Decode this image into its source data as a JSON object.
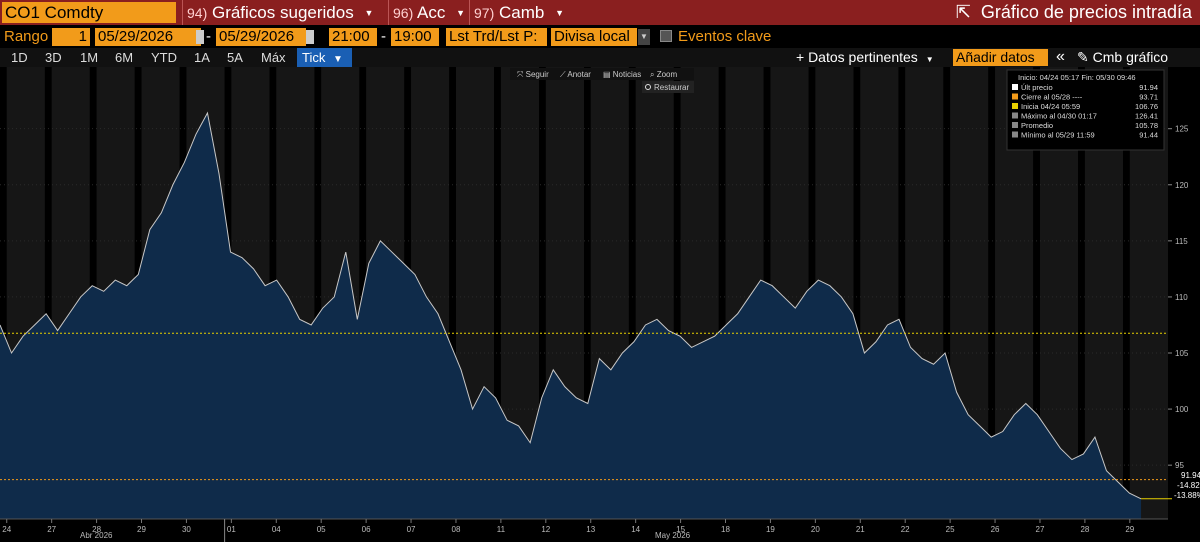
{
  "titlebar": {
    "ticker": "CO1 Comdty",
    "menus": [
      {
        "num": "94)",
        "label": "Gráficos sugeridos"
      },
      {
        "num": "96)",
        "label": "Acc"
      },
      {
        "num": "97)",
        "label": "Camb"
      }
    ],
    "intraday": "Gráfico de precios intradía"
  },
  "rangerow": {
    "label": "Rango",
    "count": "1",
    "start_date": "05/29/2026",
    "dash": "-",
    "end_date": "05/29/2026",
    "start_time": "21:00",
    "end_time": "19:00",
    "field1": "Lst Trd/Lst P:",
    "currency": "Divisa local",
    "events": "Eventos clave"
  },
  "periodrow": {
    "periods": [
      "1D",
      "3D",
      "1M",
      "6M",
      "YTD",
      "1A",
      "5A",
      "Máx"
    ],
    "tick": "Tick",
    "relevant": "+ Datos pertinentes",
    "add_data": "Añadir datos",
    "collapse": "«",
    "edit_chart": "Cmb gráfico"
  },
  "toolbar": {
    "follow": "Seguir",
    "annotate": "Anotar",
    "news": "Noticias",
    "zoom": "Zoom",
    "restore": "Restaurar"
  },
  "legend": {
    "header": "Inicio: 04/24 05:17 Fin: 05/30 09:46",
    "rows": [
      {
        "label": "Últ precio",
        "value": "91.94",
        "color": "#ffffff"
      },
      {
        "label": "Cierre al 05/28 ----",
        "value": "93.71",
        "color": "#f29b1a"
      },
      {
        "label": "Inicia 04/24 05:59",
        "value": "106.76",
        "color": "#e8d000"
      },
      {
        "label": "Máximo al 04/30 01:17",
        "value": "126.41",
        "color": "#888888"
      },
      {
        "label": "Promedio",
        "value": "105.78",
        "color": "#888888"
      },
      {
        "label": "Mínimo al 05/29 11:59",
        "value": "91.44",
        "color": "#888888"
      }
    ]
  },
  "price_tags": {
    "last": "91.94",
    "chg1": "-14.82",
    "chg2": "-13.88%"
  },
  "month_labels": {
    "apr": "Abr 2026",
    "may": "May 2026"
  },
  "chart_data": {
    "type": "area",
    "y_ticks": [
      95,
      100,
      105,
      110,
      115,
      120,
      125
    ],
    "ylim": [
      90.2,
      130.5
    ],
    "x_day_labels": [
      "24",
      "27",
      "28",
      "29",
      "30",
      "01",
      "04",
      "05",
      "06",
      "07",
      "08",
      "11",
      "12",
      "13",
      "14",
      "15",
      "18",
      "19",
      "20",
      "21",
      "22",
      "25",
      "26",
      "27",
      "28",
      "29"
    ],
    "reference_lines": {
      "start": 106.76,
      "prev_close": 93.71
    },
    "series": [
      {
        "values": [
          107.5,
          105.0,
          106.5,
          107.5,
          108.5,
          107.0,
          108.5,
          110.0,
          111.0,
          110.5,
          111.5,
          111.0,
          112.0,
          116.0,
          117.5,
          120.0,
          122.0,
          124.5,
          126.4,
          121.0,
          114.0,
          113.5,
          112.5,
          111.0,
          111.5,
          110.0,
          108.0,
          107.5,
          109.0,
          110.0,
          114.0,
          108.0,
          113.0,
          115.0,
          114.0,
          113.0,
          112.0,
          110.0,
          108.5,
          106.0,
          103.5,
          100.0,
          102.0,
          101.0,
          99.0,
          98.5,
          97.0,
          101.0,
          103.5,
          102.0,
          101.0,
          100.5,
          104.5,
          103.5,
          105.0,
          106.0,
          107.5,
          108.0,
          107.0,
          106.5,
          105.5,
          106.0,
          106.5,
          107.5,
          108.5,
          110.0,
          111.5,
          111.0,
          110.0,
          109.0,
          110.5,
          111.5,
          111.0,
          110.0,
          108.5,
          105.0,
          106.0,
          107.5,
          108.0,
          105.5,
          104.5,
          104.0,
          105.0,
          101.5,
          99.5,
          98.5,
          97.5,
          98.0,
          99.5,
          100.5,
          99.5,
          98.0,
          96.5,
          95.5,
          96.0,
          97.5,
          94.5,
          93.5,
          92.5,
          92.0
        ]
      }
    ]
  }
}
